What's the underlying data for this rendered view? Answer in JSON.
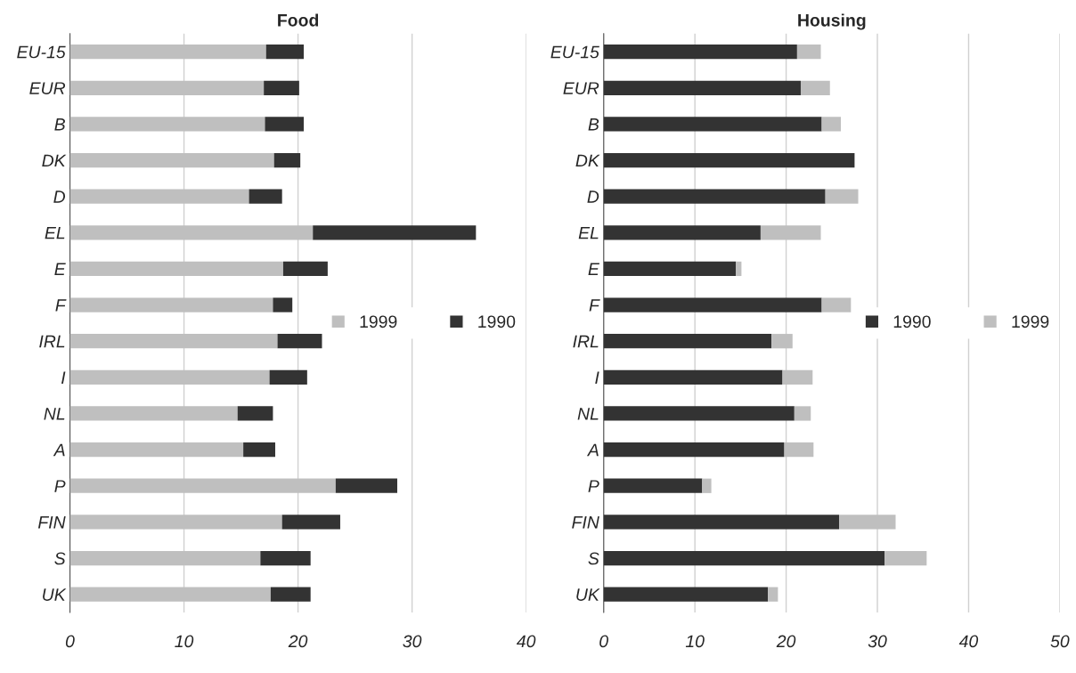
{
  "chart_data": [
    {
      "type": "bar",
      "title": "Food",
      "orientation": "horizontal",
      "stacked": true,
      "grid": "x",
      "legend": "right",
      "categories": [
        "EU-15",
        "EUR",
        "B",
        "DK",
        "D",
        "EL",
        "E",
        "F",
        "IRL",
        "I",
        "NL",
        "A",
        "P",
        "FIN",
        "S",
        "UK"
      ],
      "series": [
        {
          "name": "1999",
          "color": "#bfbfbf",
          "values": [
            17.2,
            17.0,
            17.1,
            17.9,
            15.7,
            21.3,
            18.7,
            17.8,
            18.2,
            17.5,
            14.7,
            15.2,
            23.3,
            18.6,
            16.7,
            17.6
          ]
        },
        {
          "name": "1990",
          "color": "#333333",
          "values": [
            3.3,
            3.1,
            3.4,
            2.3,
            2.9,
            14.3,
            3.9,
            1.7,
            3.9,
            3.3,
            3.1,
            2.8,
            5.4,
            5.1,
            4.4,
            3.5
          ]
        }
      ],
      "xlim": [
        0,
        40
      ],
      "xticks": [
        0,
        10,
        20,
        30,
        40
      ]
    },
    {
      "type": "bar",
      "title": "Housing",
      "orientation": "horizontal",
      "stacked": true,
      "grid": "x",
      "legend": "right",
      "categories": [
        "EU-15",
        "EUR",
        "B",
        "DK",
        "D",
        "EL",
        "E",
        "F",
        "IRL",
        "I",
        "NL",
        "A",
        "P",
        "FIN",
        "S",
        "UK"
      ],
      "series": [
        {
          "name": "1990",
          "color": "#333333",
          "values": [
            21.2,
            21.6,
            23.9,
            27.5,
            24.3,
            17.2,
            14.5,
            23.9,
            18.4,
            19.6,
            20.9,
            19.8,
            10.8,
            25.8,
            30.8,
            18.0
          ]
        },
        {
          "name": "1999",
          "color": "#bfbfbf",
          "values": [
            2.6,
            3.2,
            2.1,
            null,
            3.6,
            6.6,
            0.6,
            3.2,
            2.3,
            3.3,
            1.8,
            3.2,
            1.0,
            6.2,
            4.6,
            1.1
          ]
        }
      ],
      "xlim": [
        0,
        50
      ],
      "xticks": [
        0,
        10,
        20,
        30,
        40,
        50
      ]
    }
  ]
}
